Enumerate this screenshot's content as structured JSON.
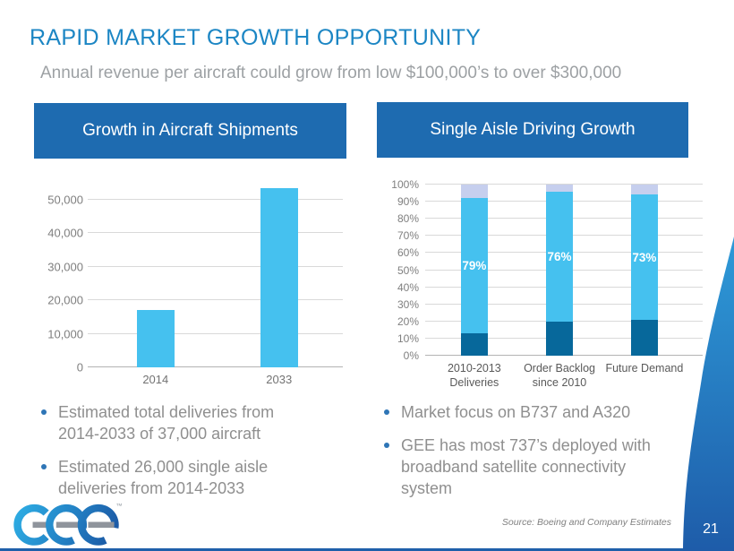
{
  "slide": {
    "title": "RAPID MARKET GROWTH OPPORTUNITY",
    "subtitle": "Annual revenue per aircraft could grow from low $100,000’s to over $300,000",
    "page_number": "21",
    "source_note": "Source: Boeing and Company  Estimates",
    "logo_brand": "GEE",
    "logo_tm": "™"
  },
  "colors": {
    "title_blue": "#1c86c4",
    "header_box_blue": "#1e6bb0",
    "bar_light_blue": "#45c1ef",
    "bar_dark_blue": "#07689b",
    "bar_lavender": "#c6cfee",
    "bullet_text_gray": "#8f8f8f",
    "bullet_dot_blue": "#2e75b6",
    "gridline_gray": "#d9d9d9",
    "corner_shape_top": "#2e9ad8",
    "corner_shape_bottom": "#1e5ca9"
  },
  "left_panel": {
    "header": "Growth in Aircraft Shipments",
    "bullets": [
      "Estimated total deliveries from 2014-2033 of 37,000 aircraft",
      "Estimated 26,000 single aisle deliveries from 2014-2033"
    ]
  },
  "right_panel": {
    "header": "Single Aisle Driving Growth",
    "bullets": [
      "Market focus on B737 and A320",
      "GEE has most 737’s deployed with broadband satellite connectivity system"
    ]
  },
  "chart_data": [
    {
      "type": "bar",
      "title": "Growth in Aircraft Shipments",
      "categories": [
        "2014",
        "2033"
      ],
      "values": [
        17000,
        53500
      ],
      "xlabel": "",
      "ylabel": "",
      "ylim": [
        0,
        50000
      ],
      "yticks": [
        "0",
        "10,000",
        "20,000",
        "30,000",
        "40,000",
        "50,000"
      ],
      "grid": true,
      "legend": false,
      "bar_color": "#45c1ef"
    },
    {
      "type": "bar",
      "stacked": true,
      "percent_stacked": true,
      "title": "Single Aisle Driving Growth",
      "categories": [
        "2010-2013\nDeliveries",
        "Order Backlog\nsince 2010",
        "Future Demand"
      ],
      "series": [
        {
          "name": "segment_dark",
          "color": "#07689b",
          "values": [
            13,
            20,
            21
          ]
        },
        {
          "name": "segment_light",
          "color": "#45c1ef",
          "values": [
            79,
            76,
            73
          ],
          "labels": [
            "79%",
            "76%",
            "73%"
          ]
        },
        {
          "name": "segment_pale",
          "color": "#c6cfee",
          "values": [
            8,
            4,
            6
          ]
        }
      ],
      "xlabel": "",
      "ylabel": "",
      "ylim": [
        0,
        100
      ],
      "yticks": [
        "0%",
        "10%",
        "20%",
        "30%",
        "40%",
        "50%",
        "60%",
        "70%",
        "80%",
        "90%",
        "100%"
      ],
      "grid": true,
      "legend": false
    }
  ]
}
